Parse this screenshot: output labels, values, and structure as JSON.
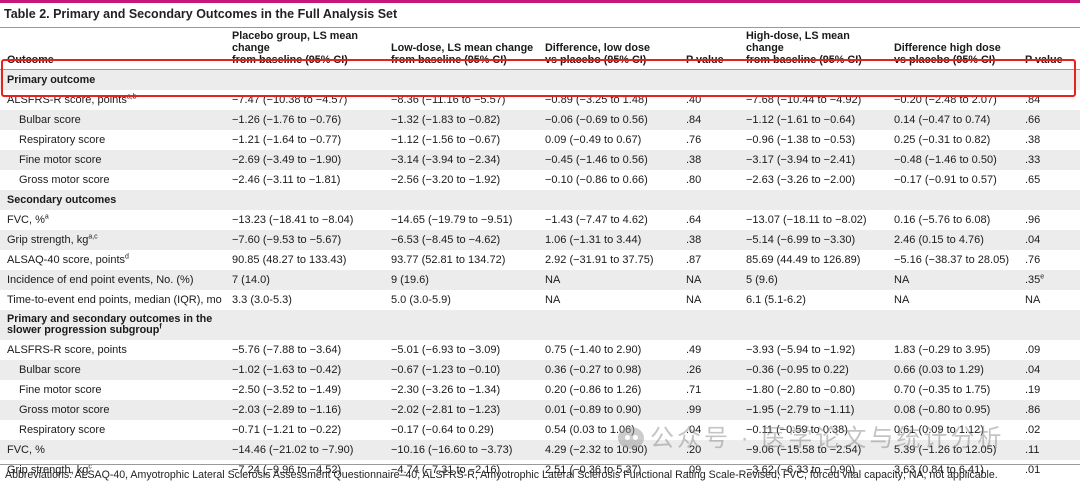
{
  "title": "Table 2. Primary and Secondary Outcomes in the Full Analysis Set",
  "headers": [
    "Outcome",
    "Placebo group, LS mean change\nfrom baseline (95% CI)",
    "Low-dose, LS mean change\nfrom baseline (95% CI)",
    "Difference, low dose\nvs placebo (95% CI)",
    "P value",
    "High-dose, LS mean change\nfrom baseline (95% CI)",
    "Difference high dose\nvs placebo (95% CI)",
    "P value"
  ],
  "rows": [
    {
      "kind": "section",
      "label": "Primary outcome",
      "cells": [
        "",
        "",
        "",
        "",
        "",
        "",
        ""
      ]
    },
    {
      "kind": "data",
      "label": "ALSFRS-R score, points",
      "sup": "a,b",
      "cells": [
        "−7.47 (−10.38 to −4.57)",
        "−8.36 (−11.16 to −5.57)",
        "−0.89 (−3.25 to 1.48)",
        ".40",
        "−7.68 (−10.44 to −4.92)",
        "−0.20 (−2.48 to 2.07)",
        ".84"
      ]
    },
    {
      "kind": "sub",
      "label": "Bulbar score",
      "cells": [
        "−1.26 (−1.76 to −0.76)",
        "−1.32 (−1.83 to −0.82)",
        "−0.06 (−0.69 to 0.56)",
        ".84",
        "−1.12 (−1.61 to −0.64)",
        "0.14 (−0.47 to 0.74)",
        ".66"
      ]
    },
    {
      "kind": "sub",
      "label": "Respiratory score",
      "cells": [
        "−1.21 (−1.64 to −0.77)",
        "−1.12 (−1.56 to −0.67)",
        "0.09 (−0.49 to 0.67)",
        ".76",
        "−0.96 (−1.38 to −0.53)",
        "0.25 (−0.31 to 0.82)",
        ".38"
      ]
    },
    {
      "kind": "sub",
      "label": "Fine motor score",
      "cells": [
        "−2.69 (−3.49 to −1.90)",
        "−3.14 (−3.94 to −2.34)",
        "−0.45 (−1.46 to 0.56)",
        ".38",
        "−3.17 (−3.94 to −2.41)",
        "−0.48 (−1.46 to 0.50)",
        ".33"
      ]
    },
    {
      "kind": "sub",
      "label": "Gross motor score",
      "cells": [
        "−2.46 (−3.11 to −1.81)",
        "−2.56 (−3.20 to −1.92)",
        "−0.10 (−0.86 to 0.66)",
        ".80",
        "−2.63 (−3.26 to −2.00)",
        "−0.17 (−0.91 to 0.57)",
        ".65"
      ]
    },
    {
      "kind": "section",
      "label": "Secondary outcomes",
      "cells": [
        "",
        "",
        "",
        "",
        "",
        "",
        ""
      ]
    },
    {
      "kind": "data",
      "label": "FVC, %",
      "sup": "a",
      "cells": [
        "−13.23 (−18.41 to −8.04)",
        "−14.65 (−19.79 to −9.51)",
        "−1.43 (−7.47 to 4.62)",
        ".64",
        "−13.07 (−18.11 to −8.02)",
        "0.16 (−5.76 to 6.08)",
        ".96"
      ]
    },
    {
      "kind": "data",
      "label": "Grip strength, kg",
      "sup": "a,c",
      "cells": [
        "−7.60 (−9.53 to −5.67)",
        "−6.53 (−8.45 to −4.62)",
        "1.06 (−1.31 to 3.44)",
        ".38",
        "−5.14 (−6.99 to −3.30)",
        "2.46 (0.15 to 4.76)",
        ".04"
      ]
    },
    {
      "kind": "data",
      "label": "ALSAQ-40 score, points",
      "sup": "d",
      "cells": [
        "90.85 (48.27 to 133.43)",
        "93.77 (52.81 to 134.72)",
        "2.92 (−31.91 to 37.75)",
        ".87",
        "85.69 (44.49 to 126.89)",
        "−5.16 (−38.37 to 28.05)",
        ".76"
      ]
    },
    {
      "kind": "data",
      "label": "Incidence of end point events, No. (%)",
      "cells": [
        "7 (14.0)",
        "9 (19.6)",
        "NA",
        "NA",
        "5 (9.6)",
        "NA",
        ".35"
      ],
      "last_sup": "e"
    },
    {
      "kind": "data",
      "label": "Time-to-event end points, median (IQR), mo",
      "cells": [
        "3.3 (3.0-5.3)",
        "5.0 (3.0-5.9)",
        "NA",
        "NA",
        "6.1 (5.1-6.2)",
        "NA",
        "NA"
      ]
    },
    {
      "kind": "section2",
      "label": "Primary and secondary outcomes in the\nslower progression subgroup",
      "sup": "f",
      "cells": [
        "",
        "",
        "",
        "",
        "",
        "",
        ""
      ]
    },
    {
      "kind": "data",
      "label": "ALSFRS-R score, points",
      "cells": [
        "−5.76 (−7.88 to −3.64)",
        "−5.01 (−6.93 to −3.09)",
        "0.75 (−1.40 to 2.90)",
        ".49",
        "−3.93 (−5.94 to −1.92)",
        "1.83 (−0.29 to 3.95)",
        ".09"
      ]
    },
    {
      "kind": "sub",
      "label": "Bulbar score",
      "cells": [
        "−1.02 (−1.63 to −0.42)",
        "−0.67 (−1.23 to −0.10)",
        "0.36 (−0.27 to 0.98)",
        ".26",
        "−0.36 (−0.95 to 0.22)",
        "0.66 (0.03 to 1.29)",
        ".04"
      ]
    },
    {
      "kind": "sub",
      "label": "Fine motor score",
      "cells": [
        "−2.50 (−3.52 to −1.49)",
        "−2.30 (−3.26 to −1.34)",
        "0.20 (−0.86 to 1.26)",
        ".71",
        "−1.80 (−2.80 to −0.80)",
        "0.70 (−0.35 to 1.75)",
        ".19"
      ]
    },
    {
      "kind": "sub",
      "label": "Gross motor score",
      "cells": [
        "−2.03 (−2.89 to −1.16)",
        "−2.02 (−2.81 to −1.23)",
        "0.01 (−0.89 to 0.90)",
        ".99",
        "−1.95 (−2.79 to −1.11)",
        "0.08 (−0.80 to 0.95)",
        ".86"
      ]
    },
    {
      "kind": "sub",
      "label": "Respiratory score",
      "cells": [
        "−0.71 (−1.21 to −0.22)",
        "−0.17 (−0.64 to 0.29)",
        "0.54 (0.03 to 1.06)",
        ".04",
        "−0.11 (−0.59 to 0.38)",
        "0.61 (0.09 to 1.12)",
        ".02"
      ]
    },
    {
      "kind": "data",
      "label": "FVC, %",
      "cells": [
        "−14.46 (−21.02 to −7.90)",
        "−10.16 (−16.60 to −3.73)",
        "4.29 (−2.32 to 10.90)",
        ".20",
        "−9.06 (−15.58 to −2.54)",
        "5.39 (−1.26 to 12.05)",
        ".11"
      ]
    },
    {
      "kind": "data",
      "label": "Grip strength, kg",
      "sup": "c",
      "cells": [
        "−7.24 (−9.96 to −4.52)",
        "−4.74 (−7.31 to −2.16)",
        "2.51 (−0.36 to 5.37)",
        ".09",
        "−3.62 (−6.33 to −0.90)",
        "3.63 (0.84 to 6.41)",
        ".01"
      ]
    }
  ],
  "abbreviations": "Abbreviations: ALSAQ-40, Amyotrophic Lateral Sclerosis Assessment Questionnaire–40; ALSFRS-R, Amyotrophic Lateral Sclerosis Functional Rating Scale-Revised; FVC, forced vital capacity; NA, not applicable.",
  "watermark": "公众号 · 医学论文与统计分析",
  "colors": {
    "accent_bar": "#c8177a",
    "highlight_box": "#e8211e",
    "row_shade": "#ececec"
  }
}
